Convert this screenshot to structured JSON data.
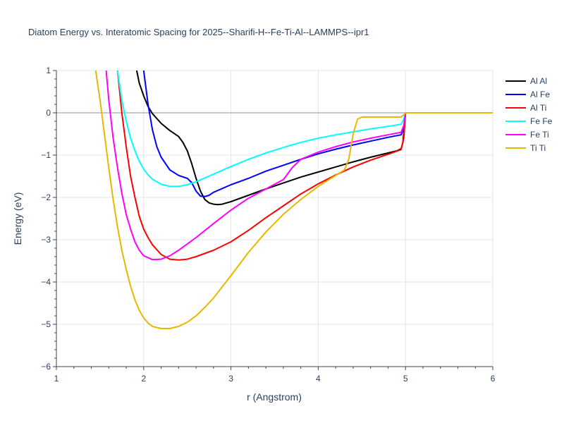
{
  "chart_data": {
    "type": "line",
    "title": "Diatom Energy vs. Interatomic Spacing for 2025--Sharifi-H--Fe-Ti-Al--LAMMPS--ipr1",
    "xlabel": "r (Angstrom)",
    "ylabel": "Energy (eV)",
    "xlim": [
      1,
      6
    ],
    "ylim": [
      -6,
      1
    ],
    "xticks": [
      1,
      2,
      3,
      4,
      5,
      6
    ],
    "yticks": [
      1,
      0,
      -1,
      -2,
      -3,
      -4,
      -5,
      -6
    ],
    "xtick_labels": [
      "1",
      "2",
      "3",
      "4",
      "5",
      "6"
    ],
    "ytick_labels": [
      "1",
      "0",
      "−1",
      "−2",
      "−3",
      "−4",
      "−5",
      "−6"
    ],
    "grid": true,
    "legend_position": "right",
    "series": [
      {
        "name": "Al Al",
        "color": "#000000",
        "x": [
          1.92,
          1.95,
          2.0,
          2.05,
          2.1,
          2.2,
          2.3,
          2.4,
          2.45,
          2.5,
          2.55,
          2.6,
          2.65,
          2.7,
          2.75,
          2.8,
          2.85,
          2.9,
          3.0,
          3.2,
          3.4,
          3.6,
          3.8,
          4.0,
          4.2,
          4.4,
          4.6,
          4.8,
          4.9,
          4.95,
          4.97,
          5.0,
          5.5,
          6.0
        ],
        "y": [
          1.0,
          0.7,
          0.4,
          0.15,
          -0.02,
          -0.25,
          -0.42,
          -0.56,
          -0.7,
          -0.9,
          -1.2,
          -1.55,
          -1.85,
          -2.05,
          -2.13,
          -2.16,
          -2.17,
          -2.16,
          -2.1,
          -1.95,
          -1.8,
          -1.66,
          -1.52,
          -1.4,
          -1.28,
          -1.16,
          -1.05,
          -0.95,
          -0.9,
          -0.85,
          -0.7,
          0.0,
          0.0,
          0.0
        ]
      },
      {
        "name": "Al Fe",
        "color": "#0000ff",
        "x": [
          2.0,
          2.05,
          2.1,
          2.15,
          2.2,
          2.3,
          2.4,
          2.5,
          2.55,
          2.6,
          2.65,
          2.7,
          2.75,
          2.8,
          3.0,
          3.2,
          3.4,
          3.6,
          3.8,
          4.0,
          4.2,
          4.4,
          4.6,
          4.8,
          4.95,
          4.98,
          5.0,
          5.5,
          6.0
        ],
        "y": [
          1.0,
          0.2,
          -0.4,
          -0.8,
          -1.05,
          -1.35,
          -1.48,
          -1.55,
          -1.65,
          -1.85,
          -1.97,
          -1.98,
          -1.95,
          -1.88,
          -1.7,
          -1.55,
          -1.38,
          -1.24,
          -1.1,
          -0.97,
          -0.86,
          -0.76,
          -0.67,
          -0.58,
          -0.52,
          -0.35,
          0.0,
          0.0,
          0.0
        ]
      },
      {
        "name": "Al Ti",
        "color": "#ff0000",
        "x": [
          1.7,
          1.75,
          1.8,
          1.85,
          1.9,
          1.95,
          2.0,
          2.05,
          2.1,
          2.2,
          2.3,
          2.4,
          2.5,
          2.6,
          2.8,
          3.0,
          3.2,
          3.4,
          3.6,
          3.8,
          4.0,
          4.2,
          4.4,
          4.6,
          4.8,
          4.95,
          4.98,
          5.0,
          5.5,
          6.0
        ],
        "y": [
          1.0,
          0.0,
          -0.8,
          -1.5,
          -2.0,
          -2.45,
          -2.75,
          -2.95,
          -3.12,
          -3.35,
          -3.46,
          -3.48,
          -3.46,
          -3.4,
          -3.25,
          -3.05,
          -2.78,
          -2.48,
          -2.2,
          -1.92,
          -1.68,
          -1.47,
          -1.28,
          -1.12,
          -0.98,
          -0.87,
          -0.6,
          0.0,
          0.0,
          0.0
        ]
      },
      {
        "name": "Fe Fe",
        "color": "#00ffff",
        "x": [
          1.7,
          1.75,
          1.8,
          1.85,
          1.9,
          1.95,
          2.0,
          2.05,
          2.1,
          2.2,
          2.3,
          2.4,
          2.5,
          2.6,
          2.8,
          3.0,
          3.2,
          3.4,
          3.6,
          3.8,
          4.0,
          4.2,
          4.4,
          4.6,
          4.8,
          4.95,
          4.98,
          5.0,
          5.5,
          6.0
        ],
        "y": [
          1.0,
          0.3,
          -0.2,
          -0.6,
          -0.9,
          -1.15,
          -1.33,
          -1.47,
          -1.57,
          -1.69,
          -1.74,
          -1.74,
          -1.7,
          -1.63,
          -1.45,
          -1.27,
          -1.1,
          -0.95,
          -0.82,
          -0.7,
          -0.6,
          -0.52,
          -0.45,
          -0.38,
          -0.32,
          -0.27,
          -0.15,
          0.0,
          0.0,
          0.0
        ]
      },
      {
        "name": "Fe Ti",
        "color": "#ff00ff",
        "x": [
          1.57,
          1.6,
          1.65,
          1.7,
          1.75,
          1.8,
          1.85,
          1.9,
          1.95,
          2.0,
          2.1,
          2.2,
          2.3,
          2.4,
          2.6,
          2.8,
          3.0,
          3.2,
          3.4,
          3.6,
          3.7,
          3.8,
          4.0,
          4.2,
          4.4,
          4.6,
          4.8,
          4.95,
          4.98,
          5.0,
          5.5,
          6.0
        ],
        "y": [
          1.0,
          0.3,
          -0.6,
          -1.3,
          -1.9,
          -2.4,
          -2.75,
          -3.05,
          -3.25,
          -3.38,
          -3.47,
          -3.46,
          -3.38,
          -3.25,
          -2.95,
          -2.62,
          -2.3,
          -2.02,
          -1.8,
          -1.58,
          -1.3,
          -1.1,
          -0.93,
          -0.8,
          -0.69,
          -0.6,
          -0.52,
          -0.46,
          -0.3,
          0.0,
          0.0,
          0.0
        ]
      },
      {
        "name": "Ti Ti",
        "color": "#e6b800",
        "x": [
          1.45,
          1.5,
          1.55,
          1.6,
          1.65,
          1.7,
          1.75,
          1.8,
          1.85,
          1.9,
          1.95,
          2.0,
          2.05,
          2.1,
          2.2,
          2.3,
          2.4,
          2.5,
          2.6,
          2.7,
          2.8,
          3.0,
          3.2,
          3.4,
          3.6,
          3.8,
          4.0,
          4.2,
          4.3,
          4.35,
          4.4,
          4.45,
          4.5,
          4.6,
          4.8,
          4.95,
          4.98,
          5.0,
          5.5,
          6.0
        ],
        "y": [
          1.0,
          0.3,
          -0.5,
          -1.3,
          -2.05,
          -2.7,
          -3.25,
          -3.7,
          -4.1,
          -4.42,
          -4.67,
          -4.85,
          -4.97,
          -5.05,
          -5.1,
          -5.1,
          -5.05,
          -4.95,
          -4.8,
          -4.6,
          -4.38,
          -3.85,
          -3.3,
          -2.82,
          -2.4,
          -2.05,
          -1.74,
          -1.48,
          -1.35,
          -1.1,
          -0.5,
          -0.15,
          -0.1,
          -0.1,
          -0.1,
          -0.1,
          -0.05,
          0.0,
          0.0,
          0.0
        ]
      }
    ]
  }
}
